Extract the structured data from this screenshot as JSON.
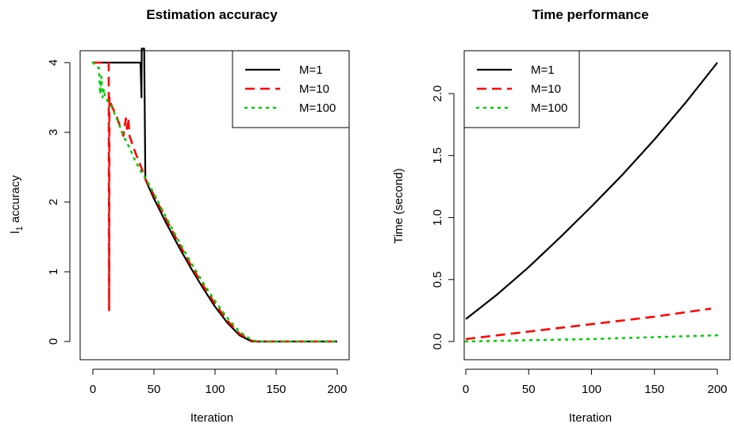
{
  "chart_data": [
    {
      "type": "line",
      "title": "Estimation accuracy",
      "xlabel": "Iteration",
      "ylabel": "l1 accuracy",
      "ylabel_main": "l",
      "ylabel_sub": "1",
      "ylabel_rest": " accuracy",
      "xlim": [
        0,
        200
      ],
      "ylim": [
        0,
        4
      ],
      "xticks": [
        0,
        50,
        100,
        150,
        200
      ],
      "yticks": [
        0,
        1,
        2,
        3,
        4
      ],
      "grid": false,
      "legend_position": "top-right",
      "series": [
        {
          "name": "M=1",
          "color": "#000000",
          "dash": "solid",
          "x": [
            0,
            38,
            39,
            39.5,
            39.8,
            40,
            40.2,
            40.5,
            41,
            42,
            43,
            50,
            60,
            70,
            80,
            90,
            100,
            110,
            120,
            130,
            135,
            140,
            150,
            160,
            170,
            180,
            190,
            200
          ],
          "y": [
            4,
            4,
            4,
            3.7,
            3.5,
            4.2,
            4.2,
            4.2,
            4.2,
            4.2,
            2.32,
            2.05,
            1.7,
            1.37,
            1.06,
            0.77,
            0.5,
            0.27,
            0.09,
            0.0,
            0,
            0,
            0,
            0,
            0,
            0,
            0,
            0
          ]
        },
        {
          "name": "M=10",
          "color": "#ff0000",
          "dash": "dashed",
          "x": [
            0,
            12,
            13,
            13.3,
            13.6,
            14,
            15,
            20,
            25,
            27,
            28,
            29,
            30,
            35,
            40,
            43,
            50,
            60,
            70,
            80,
            90,
            100,
            110,
            120,
            130,
            135,
            140,
            150,
            160,
            170,
            180,
            190,
            200
          ],
          "y": [
            4,
            4,
            4,
            0.45,
            3.5,
            3.45,
            3.4,
            3.2,
            2.95,
            3.2,
            3.05,
            3.2,
            2.95,
            2.7,
            2.48,
            2.33,
            2.1,
            1.75,
            1.42,
            1.1,
            0.81,
            0.54,
            0.3,
            0.11,
            0.01,
            0,
            0,
            0,
            0,
            0,
            0,
            0,
            0
          ]
        },
        {
          "name": "M=100",
          "color": "#00cd00",
          "dash": "dotted",
          "x": [
            0,
            5,
            6,
            7,
            8,
            9,
            10,
            12,
            15,
            20,
            25,
            30,
            35,
            40,
            43,
            50,
            60,
            70,
            80,
            90,
            100,
            110,
            120,
            130,
            135,
            140,
            150,
            160,
            170,
            180,
            190,
            200
          ],
          "y": [
            4,
            3.92,
            3.55,
            3.8,
            3.5,
            3.62,
            3.5,
            3.45,
            3.38,
            3.18,
            2.95,
            2.78,
            2.58,
            2.42,
            2.35,
            2.12,
            1.78,
            1.45,
            1.14,
            0.85,
            0.58,
            0.34,
            0.14,
            0.02,
            0,
            0,
            0,
            0,
            0,
            0,
            0,
            0
          ]
        }
      ]
    },
    {
      "type": "line",
      "title": "Time performance",
      "xlabel": "Iteration",
      "ylabel": "Time (second)",
      "xlim": [
        0,
        200
      ],
      "ylim": [
        0,
        2.25
      ],
      "xticks": [
        0,
        50,
        100,
        150,
        200
      ],
      "yticks": [
        0.0,
        0.5,
        1.0,
        1.5,
        2.0
      ],
      "ytick_labels": [
        "0.0",
        "0.5",
        "1.0",
        "1.5",
        "2.0"
      ],
      "grid": false,
      "legend_position": "top-left",
      "series": [
        {
          "name": "M=1",
          "color": "#000000",
          "dash": "solid",
          "x": [
            0,
            25,
            50,
            75,
            100,
            125,
            150,
            175,
            200
          ],
          "y": [
            0.18,
            0.38,
            0.6,
            0.84,
            1.09,
            1.35,
            1.63,
            1.93,
            2.25
          ]
        },
        {
          "name": "M=10",
          "color": "#ff0000",
          "dash": "dashed",
          "x": [
            0,
            50,
            100,
            150,
            195
          ],
          "y": [
            0.02,
            0.08,
            0.14,
            0.2,
            0.265
          ]
        },
        {
          "name": "M=100",
          "color": "#00cd00",
          "dash": "dotted",
          "x": [
            0,
            50,
            100,
            150,
            200
          ],
          "y": [
            0.0,
            0.01,
            0.02,
            0.035,
            0.05
          ]
        }
      ]
    }
  ]
}
